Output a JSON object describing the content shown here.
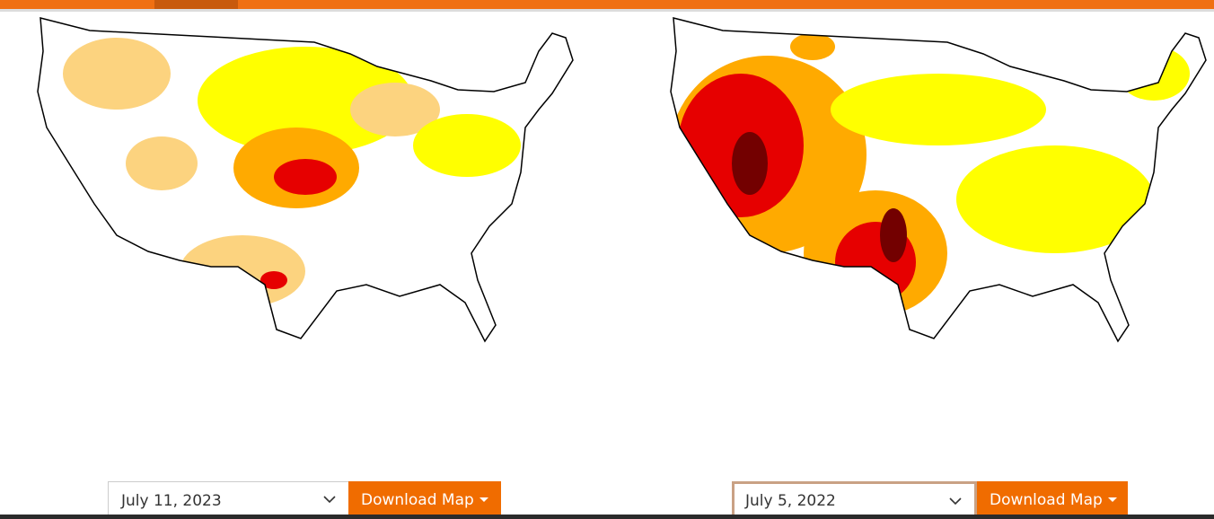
{
  "comparisons": [
    {
      "date": "July 11, 2023",
      "button": "Download Map"
    },
    {
      "date": "July 5, 2022",
      "button": "Download Map"
    }
  ]
}
